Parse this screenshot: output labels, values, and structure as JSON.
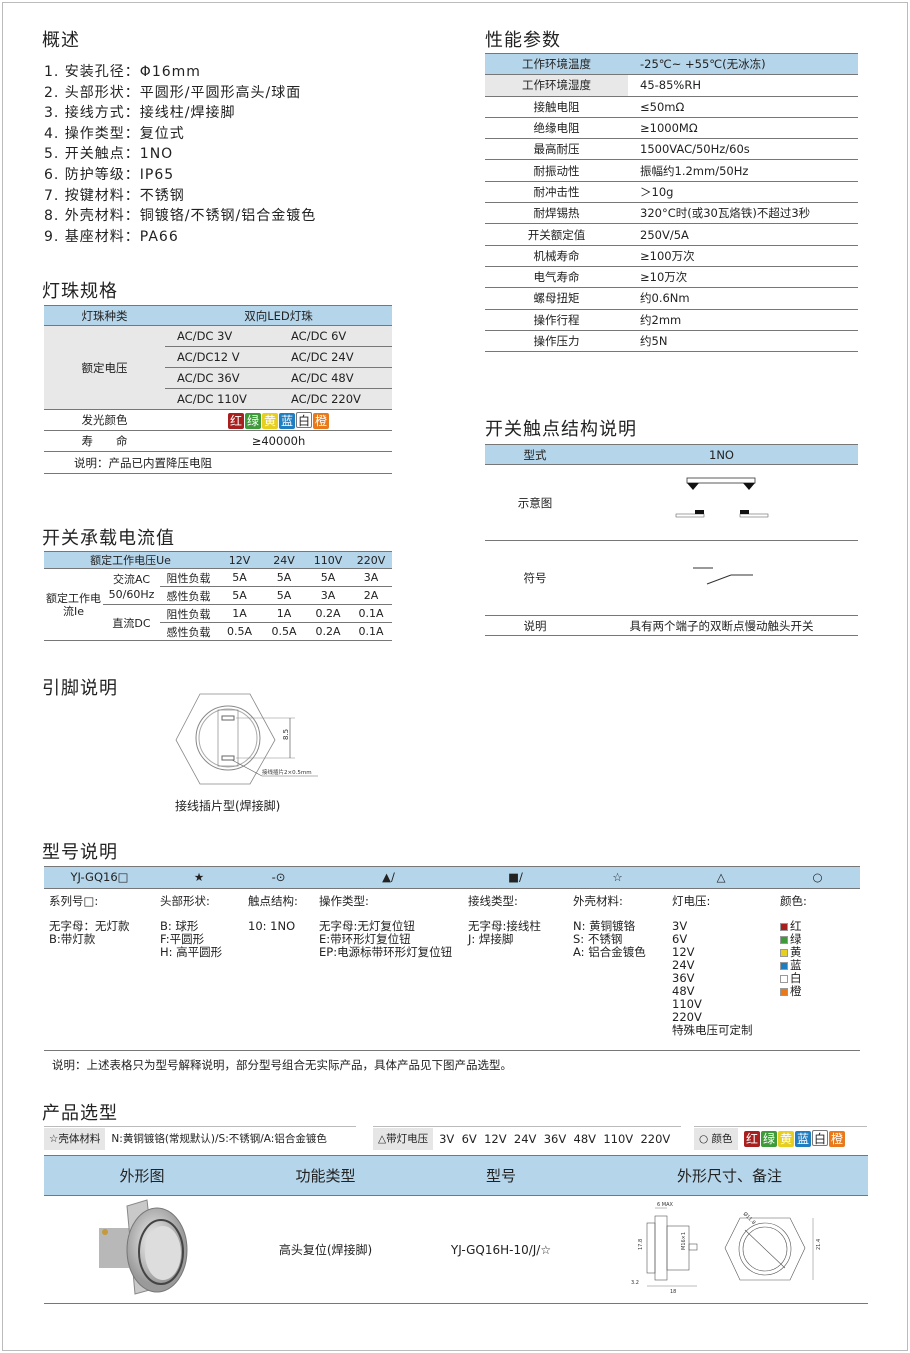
{
  "overview": {
    "title": "概述",
    "items": [
      "1. 安装孔径：Φ16mm",
      "2. 头部形状：平圆形/平圆形高头/球面",
      "3. 接线方式：接线柱/焊接脚",
      "4. 操作类型：复位式",
      "5. 开关触点：1NO",
      "6. 防护等级：IP65",
      "7. 按键材料：不锈钢",
      "8. 外壳材料：铜镀铬/不锈钢/铝合金镀色",
      "9. 基座材料：PA66"
    ]
  },
  "led": {
    "title": "灯珠规格",
    "h1": "灯珠种类",
    "h2": "双向LED灯珠",
    "rated_label": "额定电压",
    "voltages": [
      "AC/DC 3V",
      "AC/DC 6V",
      "AC/DC12 V",
      "AC/DC 24V",
      "AC/DC 36V",
      "AC/DC 48V",
      "AC/DC 110V",
      "AC/DC 220V"
    ],
    "color_label": "发光颜色",
    "colors": [
      {
        "t": "红",
        "c": "#a81f1f"
      },
      {
        "t": "绿",
        "c": "#3f9a3a"
      },
      {
        "t": "黄",
        "c": "#e6cf1f"
      },
      {
        "t": "蓝",
        "c": "#1f7dc2"
      },
      {
        "t": "白",
        "c": "#ffffff"
      },
      {
        "t": "橙",
        "c": "#e97a1c"
      }
    ],
    "life_label": "寿　　命",
    "life": "≥40000h",
    "note": "说明：产品已内置降压电阻"
  },
  "current": {
    "title": "开关承载电流值",
    "h_label": "额定工作电压Ue",
    "volts": [
      "12V",
      "24V",
      "110V",
      "220V"
    ],
    "row_label": "额定工作电流Ie",
    "ac": "交流AC 50/60Hz",
    "dc": "直流DC",
    "res": "阻性负载",
    "ind": "感性负载",
    "ac_res": [
      "5A",
      "5A",
      "5A",
      "3A"
    ],
    "ac_ind": [
      "5A",
      "5A",
      "3A",
      "2A"
    ],
    "dc_res": [
      "1A",
      "1A",
      "0.2A",
      "0.1A"
    ],
    "dc_ind": [
      "0.5A",
      "0.5A",
      "0.2A",
      "0.1A"
    ]
  },
  "pins": {
    "title": "引脚说明",
    "dim": "8.5",
    "tab": "接线插片2×0.5mm",
    "caption": "接线插片型(焊接脚)"
  },
  "perf": {
    "title": "性能参数",
    "rows": [
      [
        "工作环境温度",
        "-25℃~ +55℃(无冰冻)"
      ],
      [
        "工作环境湿度",
        "45-85%RH"
      ],
      [
        "接触电阻",
        "≤50mΩ"
      ],
      [
        "绝缘电阻",
        "≥1000MΩ"
      ],
      [
        "最高耐压",
        "1500VAC/50Hz/60s"
      ],
      [
        "耐振动性",
        "振幅约1.2mm/50Hz"
      ],
      [
        "耐冲击性",
        "＞10g"
      ],
      [
        "耐焊锡热",
        "320°C时(或30瓦烙铁)不超过3秒"
      ],
      [
        "开关额定值",
        "250V/5A"
      ],
      [
        "机械寿命",
        "≥100万次"
      ],
      [
        "电气寿命",
        "≥10万次"
      ],
      [
        "螺母扭矩",
        "约0.6Nm"
      ],
      [
        "操作行程",
        "约2mm"
      ],
      [
        "操作压力",
        "约5N"
      ]
    ]
  },
  "contact": {
    "title": "开关触点结构说明",
    "type_label": "型式",
    "type": "1NO",
    "diagram_label": "示意图",
    "symbol_label": "符号",
    "desc_label": "说明",
    "desc": "具有两个端子的双断点慢动触头开关"
  },
  "model": {
    "title": "型号说明",
    "headers": [
      "YJ-GQ16□",
      "★",
      "-⊙",
      "▲/",
      "■/",
      "☆",
      "△",
      "○"
    ],
    "cols": [
      {
        "title": "系列号□:",
        "lines": [
          "无字母：无灯款",
          "B:带灯款"
        ]
      },
      {
        "title": "头部形状:",
        "lines": [
          "B: 球形",
          "F:平圆形",
          "H: 高平圆形"
        ]
      },
      {
        "title": "触点结构:",
        "lines": [
          "10: 1NO"
        ]
      },
      {
        "title": "操作类型:",
        "lines": [
          "无字母:无灯复位钮",
          "E:带环形灯复位钮",
          "EP:电源标带环形灯复位钮"
        ]
      },
      {
        "title": "接线类型:",
        "lines": [
          "无字母:接线柱",
          "J:  焊接脚"
        ]
      },
      {
        "title": "外壳材料:",
        "lines": [
          "N: 黄铜镀铬",
          "S: 不锈钢",
          "A: 铝合金镀色"
        ]
      },
      {
        "title": "灯电压:",
        "lines": [
          "3V",
          "6V",
          "12V",
          "24V",
          "36V",
          "48V",
          "110V",
          "220V",
          "特殊电压可定制"
        ]
      },
      {
        "title": "颜色:",
        "lines": [
          "红",
          "绿",
          "黄",
          "蓝",
          "白",
          "橙"
        ]
      }
    ],
    "note": "说明：上述表格只为型号解释说明，部分型号组合无实际产品，具体产品见下图产品选型。"
  },
  "selection": {
    "title": "产品选型",
    "shell_label": "☆壳体材料",
    "shell": "N:黄铜镀铬(常规默认)/S:不锈钢/A:铝合金镀色",
    "volt_label": "△带灯电压",
    "volts": "3V  6V  12V  24V  36V  48V  110V  220V",
    "color_label": "○ 颜色",
    "headers": [
      "外形图",
      "功能类型",
      "型号",
      "外形尺寸、备注"
    ],
    "function": "高头复位(焊接脚)",
    "model": "YJ-GQ16H-10/J/☆",
    "dims": {
      "max": "6 MAX",
      "h": "17.8",
      "thread": "M16×1",
      "a": "3.2",
      "len": "18",
      "dia": "Ø11.8",
      "w": "21.4"
    }
  },
  "colors": {
    "header_blue": "#b5d5ea",
    "gray": "#e8e8e8"
  }
}
